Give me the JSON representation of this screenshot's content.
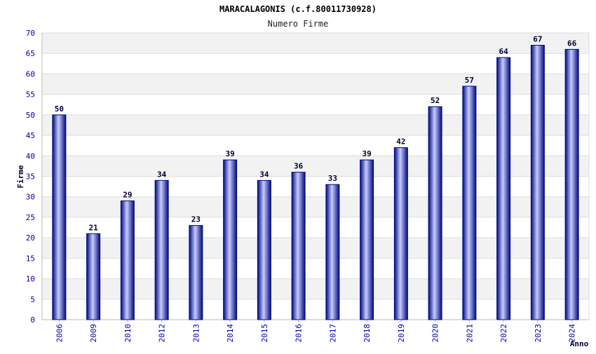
{
  "chart_data": {
    "type": "bar",
    "title": "MARACALAGONIS (c.f.80011730928)",
    "subtitle": "Numero Firme",
    "xlabel": "Anno",
    "ylabel": "Firme",
    "ylim": [
      0,
      70
    ],
    "ytick_step": 5,
    "grid": true,
    "categories": [
      "2006",
      "2009",
      "2010",
      "2012",
      "2013",
      "2014",
      "2015",
      "2016",
      "2017",
      "2018",
      "2019",
      "2020",
      "2021",
      "2022",
      "2023",
      "2024"
    ],
    "values": [
      50,
      21,
      29,
      34,
      23,
      39,
      34,
      36,
      33,
      39,
      42,
      52,
      57,
      64,
      67,
      66
    ]
  },
  "colors": {
    "bar_dark": "#000a80",
    "bar_light": "#c8ccff",
    "grid_band": "#f2f2f2",
    "grid_line": "#dddddd",
    "axis": "#bbbbbb"
  }
}
